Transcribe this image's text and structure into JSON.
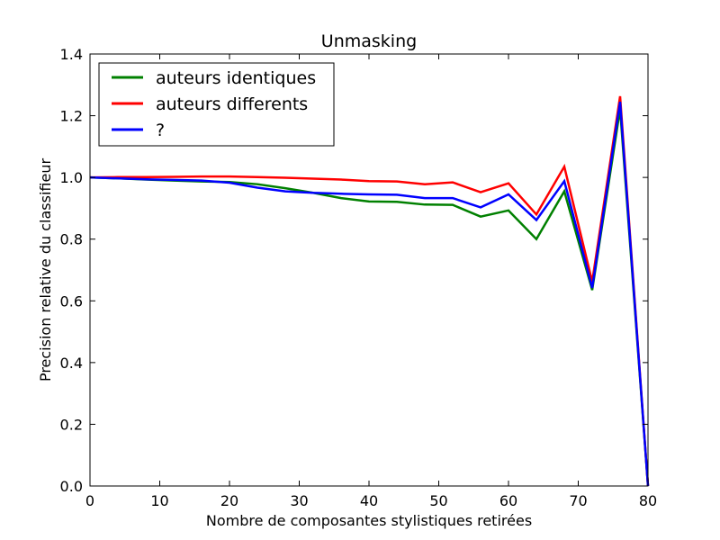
{
  "chart_data": {
    "type": "line",
    "title": "Unmasking",
    "xlabel": "Nombre de composantes stylistiques retirées",
    "ylabel": "Precision relative du classifieur",
    "xlim": [
      0,
      80
    ],
    "ylim": [
      0,
      1.4
    ],
    "xticks": [
      0,
      10,
      20,
      30,
      40,
      50,
      60,
      70,
      80
    ],
    "yticks": [
      0.0,
      0.2,
      0.4,
      0.6,
      0.8,
      1.0,
      1.2,
      1.4
    ],
    "xtick_labels": [
      "0",
      "10",
      "20",
      "30",
      "40",
      "50",
      "60",
      "70",
      "80"
    ],
    "ytick_labels": [
      "0.0",
      "0.2",
      "0.4",
      "0.6",
      "0.8",
      "1.0",
      "1.2",
      "1.4"
    ],
    "grid": false,
    "legend_position": "top-left",
    "x": [
      0,
      4,
      8,
      12,
      16,
      20,
      24,
      28,
      32,
      36,
      40,
      44,
      48,
      52,
      56,
      60,
      64,
      68,
      72,
      76,
      80
    ],
    "series": [
      {
        "name": "auteurs identiques",
        "color": "#008000",
        "values": [
          1.0,
          0.997,
          0.993,
          0.99,
          0.987,
          0.985,
          0.978,
          0.965,
          0.95,
          0.933,
          0.922,
          0.921,
          0.912,
          0.911,
          0.873,
          0.893,
          0.8,
          0.955,
          0.635,
          1.222,
          0.0
        ]
      },
      {
        "name": "auteurs differents",
        "color": "#ff0000",
        "values": [
          1.0,
          1.001,
          1.001,
          1.002,
          1.003,
          1.003,
          1.001,
          0.999,
          0.996,
          0.993,
          0.988,
          0.987,
          0.978,
          0.984,
          0.952,
          0.981,
          0.88,
          1.035,
          0.662,
          1.263,
          0.0
        ]
      },
      {
        "name": "?",
        "color": "#0000ff",
        "values": [
          1.0,
          0.997,
          0.994,
          0.992,
          0.99,
          0.983,
          0.967,
          0.955,
          0.95,
          0.947,
          0.945,
          0.944,
          0.933,
          0.933,
          0.903,
          0.945,
          0.862,
          0.988,
          0.642,
          1.245,
          0.0
        ]
      }
    ]
  }
}
